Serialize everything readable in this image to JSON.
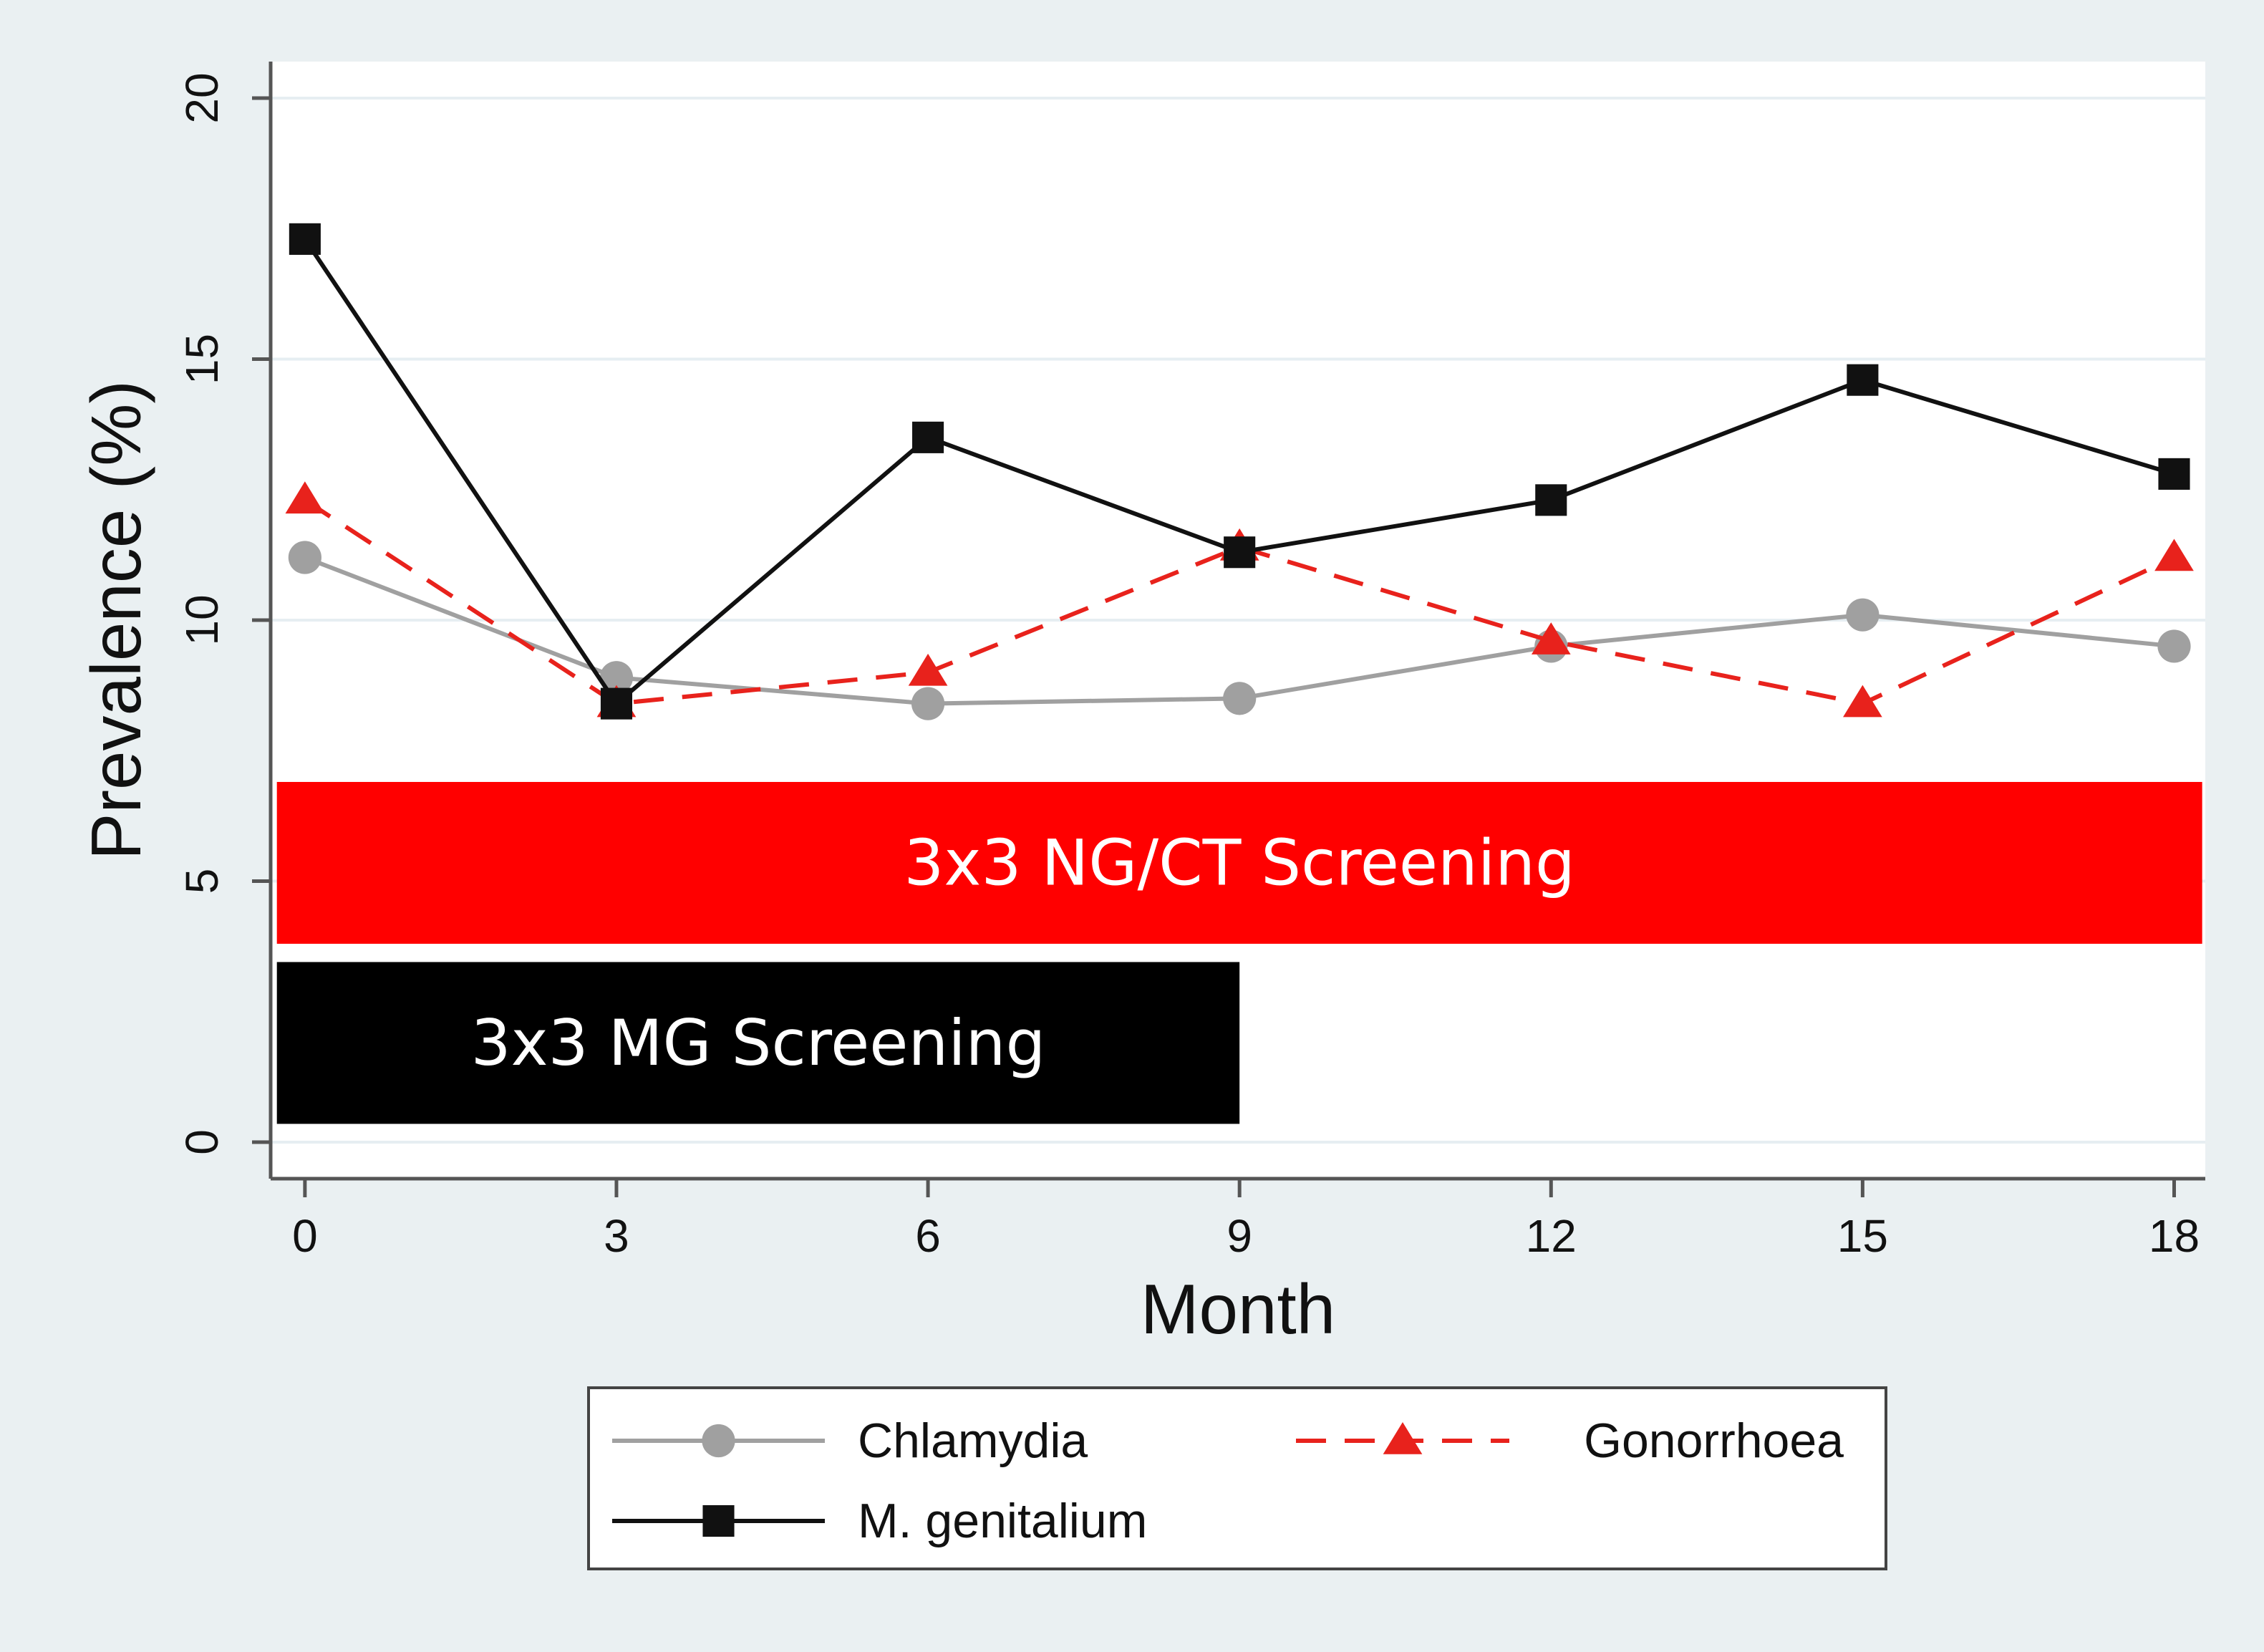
{
  "chart_data": {
    "type": "line",
    "xlabel": "Month",
    "ylabel": "Prevalence (%)",
    "x": [
      0,
      3,
      6,
      9,
      12,
      15,
      18
    ],
    "x_ticks": [
      0,
      3,
      6,
      9,
      12,
      15,
      18
    ],
    "y_ticks": [
      0,
      5,
      10,
      15,
      20
    ],
    "xlim": [
      -0.33,
      18.3
    ],
    "ylim": [
      -0.7,
      20.7
    ],
    "grid": true,
    "series": [
      {
        "name": "Chlamydia",
        "color": "#a0a0a0",
        "style": "solid",
        "marker": "circle",
        "values": [
          11.2,
          8.9,
          8.4,
          8.5,
          9.5,
          10.1,
          9.5
        ]
      },
      {
        "name": "Gonorrhoea",
        "color": "#e8221c",
        "style": "dashed",
        "marker": "triangle",
        "values": [
          12.3,
          8.4,
          9.0,
          11.4,
          9.6,
          8.4,
          11.2
        ]
      },
      {
        "name": "M. genitalium",
        "color": "#111111",
        "style": "solid",
        "marker": "square",
        "values": [
          17.3,
          8.4,
          13.5,
          11.3,
          12.3,
          14.6,
          12.8
        ]
      }
    ],
    "annotations": [
      {
        "text": "3x3 NG/CT Screening",
        "color": "#ff0000",
        "x_start": -0.27,
        "x_end": 18.27,
        "y_low": 3.8,
        "y_high": 6.9
      },
      {
        "text": "3x3 MG Screening",
        "color": "#000000",
        "x_start": -0.27,
        "x_end": 9.0,
        "y_low": 0.35,
        "y_high": 3.45
      }
    ],
    "legend": {
      "placement": "bottom",
      "order": [
        "Chlamydia",
        "Gonorrhoea",
        "M. genitalium"
      ]
    }
  }
}
